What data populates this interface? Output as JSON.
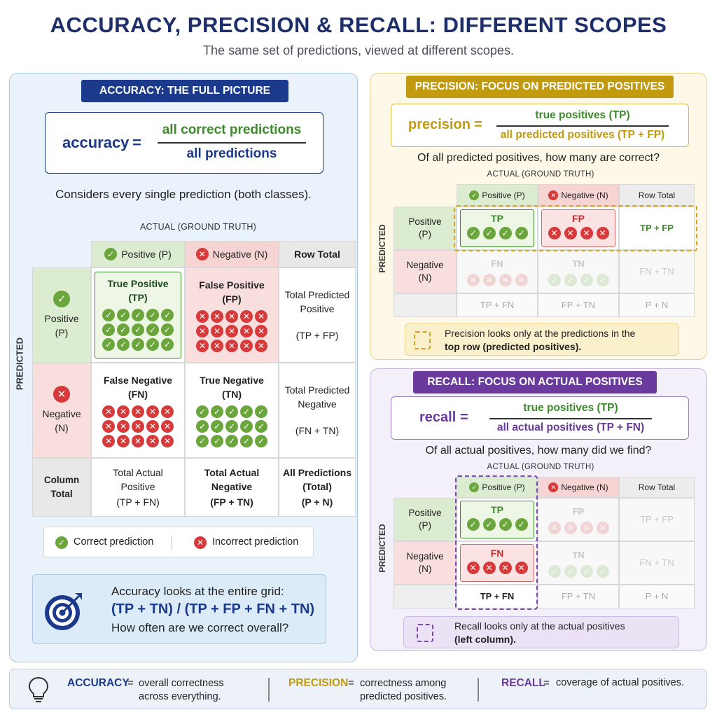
{
  "title": "ACCURACY, PRECISION & RECALL: DIFFERENT SCOPES",
  "subtitle": "The same set of predictions, viewed at different scopes.",
  "colors": {
    "navy": "#1c3a8c",
    "green": "#3d8a2c",
    "red": "#d63a3a",
    "gold": "#c19a10",
    "purple": "#6a3a9c"
  },
  "accuracy": {
    "header": "ACCURACY: THE FULL PICTURE",
    "formula_lhs": "accuracy",
    "formula_eq": "=",
    "numerator": "all correct predictions",
    "denominator": "all predictions",
    "caption": "Considers every single prediction (both classes).",
    "actual_label": "ACTUAL (GROUND TRUTH)",
    "predicted_label": "PREDICTED",
    "col_pos": "Positive (P)",
    "col_neg": "Negative (N)",
    "col_total": "Row Total",
    "row_pos": [
      "Positive",
      "(P)"
    ],
    "row_neg": [
      "Negative",
      "(N)"
    ],
    "row_total": "Column Total",
    "tp": [
      "True Positive",
      "(TP)"
    ],
    "fp": [
      "False Positive",
      "(FP)"
    ],
    "fn": [
      "False Negative",
      "(FN)"
    ],
    "tn": [
      "True Negative",
      "(TN)"
    ],
    "total_pred_pos": [
      "Total Predicted",
      "Positive",
      "(TP + FP)"
    ],
    "total_pred_neg": [
      "Total Predicted",
      "Negative",
      "(FN + TN)"
    ],
    "total_act_pos": [
      "Total Actual",
      "Positive",
      "(TP + FN)"
    ],
    "total_act_neg": [
      "Total Actual",
      "Negative",
      "(FP + TN)"
    ],
    "all_pred": [
      "All Predictions",
      "(Total)",
      "(P + N)"
    ],
    "legend_correct": "Correct prediction",
    "legend_incorrect": "Incorrect prediction",
    "note_line1": "Accuracy looks at the entire grid:",
    "note_formula": "(TP + TN) / (TP + FP + FN + TN)",
    "note_line3": "How often are we correct overall?"
  },
  "precision": {
    "header": "PRECISION: FOCUS ON PREDICTED POSITIVES",
    "formula_lhs": "precision",
    "formula_eq": "=",
    "numerator": "true positives (TP)",
    "denominator": "all predicted positives (TP + FP)",
    "caption": "Of all predicted positives, how many are correct?",
    "actual_label": "ACTUAL (GROUND TRUTH)",
    "predicted_label": "PREDICTED",
    "col_pos": "Positive (P)",
    "col_neg": "Negative (N)",
    "col_total": "Row Total",
    "row_pos": [
      "Positive",
      "(P)"
    ],
    "row_neg": [
      "Negative",
      "(N)"
    ],
    "tp": "TP",
    "fp": "FP",
    "fn": "FN",
    "tn": "TN",
    "tp_fp": "TP + FP",
    "fn_tn": "FN + TN",
    "tp_fn": "TP + FN",
    "fp_tn": "FP + TN",
    "p_n": "P + N",
    "note_line1": "Precision looks only at the predictions in the",
    "note_line2": "top row (predicted positives)."
  },
  "recall": {
    "header": "RECALL: FOCUS ON ACTUAL POSITIVES",
    "formula_lhs": "recall",
    "formula_eq": "=",
    "numerator": "true positives (TP)",
    "denominator": "all actual positives (TP + FN)",
    "caption": "Of all actual positives, how many did we find?",
    "actual_label": "ACTUAL (GROUND TRUTH)",
    "predicted_label": "PREDICTED",
    "col_pos": "Positive (P)",
    "col_neg": "Negative (N)",
    "col_total": "Row Total",
    "row_pos": [
      "Positive",
      "(P)"
    ],
    "row_neg": [
      "Negative",
      "(N)"
    ],
    "tp": "TP",
    "fp": "FP",
    "fn": "FN",
    "tn": "TN",
    "tp_fp": "TP + FP",
    "fn_tn": "FN + TN",
    "tp_fn": "TP + FN",
    "fp_tn": "FP + TN",
    "p_n": "P + N",
    "note_line1": "Recall looks only at the actual positives",
    "note_line2": "(left column)."
  },
  "summary": {
    "acc_term": "ACCURACY",
    "acc_eq": "=",
    "acc_desc": [
      "overall correctness",
      "across everything."
    ],
    "prec_term": "PRECISION",
    "prec_eq": "=",
    "prec_desc": [
      "correctness among",
      "predicted positives."
    ],
    "rec_term": "RECALL",
    "rec_eq": "=",
    "rec_desc": "coverage of actual positives."
  },
  "icons": [
    "check-icon",
    "cross-icon",
    "target-icon",
    "lightbulb-icon",
    "dashed-box-icon"
  ]
}
